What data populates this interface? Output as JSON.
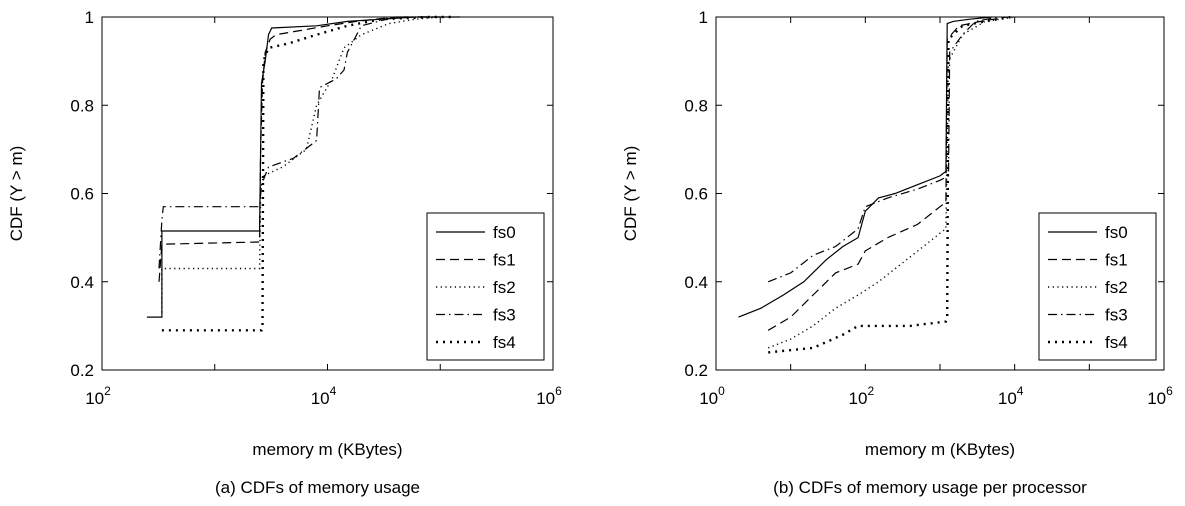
{
  "chart_data": [
    {
      "type": "line",
      "caption": "(a) CDFs of memory usage",
      "xlabel": "memory m (KBytes)",
      "ylabel": "CDF (Y > m)",
      "xscale": "log",
      "xlim": [
        100,
        1000000
      ],
      "ylim": [
        0.2,
        1.0
      ],
      "xticks": [
        {
          "base": "10",
          "exp": "2",
          "value": 100
        },
        {
          "base": "10",
          "exp": "4",
          "value": 10000
        },
        {
          "base": "10",
          "exp": "6",
          "value": 1000000
        }
      ],
      "yticks": [
        {
          "label": "0.2",
          "value": 0.2
        },
        {
          "label": "0.4",
          "value": 0.4
        },
        {
          "label": "0.6",
          "value": 0.6
        },
        {
          "label": "0.8",
          "value": 0.8
        },
        {
          "label": "1",
          "value": 1.0
        }
      ],
      "grid": false,
      "legend_position": "lower-right",
      "series": [
        {
          "name": "fs0",
          "dash": "solid",
          "points": [
            [
              250,
              0.32
            ],
            [
              340,
              0.32
            ],
            [
              340,
              0.515
            ],
            [
              2500,
              0.515
            ],
            [
              2500,
              0.52
            ],
            [
              2600,
              0.85
            ],
            [
              2800,
              0.9
            ],
            [
              3000,
              0.96
            ],
            [
              3200,
              0.975
            ],
            [
              8000,
              0.98
            ],
            [
              15000,
              0.99
            ],
            [
              30000,
              0.995
            ],
            [
              60000,
              1.0
            ],
            [
              150000,
              1.0
            ]
          ]
        },
        {
          "name": "fs1",
          "dash": "dashed",
          "points": [
            [
              320,
              0.4
            ],
            [
              340,
              0.485
            ],
            [
              2500,
              0.49
            ],
            [
              2550,
              0.7
            ],
            [
              2650,
              0.85
            ],
            [
              2800,
              0.92
            ],
            [
              3100,
              0.95
            ],
            [
              3500,
              0.96
            ],
            [
              10000,
              0.98
            ],
            [
              18000,
              0.99
            ],
            [
              40000,
              1.0
            ],
            [
              100000,
              1.0
            ]
          ]
        },
        {
          "name": "fs2",
          "dash": "dotted",
          "points": [
            [
              340,
              0.33
            ],
            [
              340,
              0.43
            ],
            [
              2500,
              0.43
            ],
            [
              2550,
              0.6
            ],
            [
              2700,
              0.64
            ],
            [
              4000,
              0.66
            ],
            [
              6500,
              0.7
            ],
            [
              8000,
              0.8
            ],
            [
              11000,
              0.86
            ],
            [
              14000,
              0.93
            ],
            [
              20000,
              0.96
            ],
            [
              35000,
              0.985
            ],
            [
              60000,
              0.995
            ],
            [
              100000,
              1.0
            ]
          ]
        },
        {
          "name": "fs3",
          "dash": "dashdot",
          "points": [
            [
              320,
              0.43
            ],
            [
              340,
              0.54
            ],
            [
              350,
              0.57
            ],
            [
              2500,
              0.57
            ],
            [
              2600,
              0.62
            ],
            [
              3000,
              0.66
            ],
            [
              5000,
              0.68
            ],
            [
              8000,
              0.72
            ],
            [
              8500,
              0.84
            ],
            [
              12000,
              0.86
            ],
            [
              14000,
              0.88
            ],
            [
              15000,
              0.92
            ],
            [
              20000,
              0.98
            ],
            [
              40000,
              1.0
            ],
            [
              80000,
              1.0
            ]
          ]
        },
        {
          "name": "fs4",
          "dash": "bigdots",
          "points": [
            [
              340,
              0.29
            ],
            [
              2600,
              0.29
            ],
            [
              2650,
              0.3
            ],
            [
              2700,
              0.9
            ],
            [
              3000,
              0.93
            ],
            [
              4500,
              0.94
            ],
            [
              8000,
              0.96
            ],
            [
              15000,
              0.98
            ],
            [
              30000,
              0.995
            ],
            [
              80000,
              1.0
            ],
            [
              130000,
              1.0
            ]
          ]
        }
      ]
    },
    {
      "type": "line",
      "caption": "(b) CDFs of memory usage per processor",
      "xlabel": "memory m (KBytes)",
      "ylabel": "CDF (Y > m)",
      "xscale": "log",
      "xlim": [
        1,
        1000000
      ],
      "ylim": [
        0.2,
        1.0
      ],
      "xticks": [
        {
          "base": "10",
          "exp": "0",
          "value": 1
        },
        {
          "base": "10",
          "exp": "2",
          "value": 100
        },
        {
          "base": "10",
          "exp": "4",
          "value": 10000
        },
        {
          "base": "10",
          "exp": "6",
          "value": 1000000
        }
      ],
      "yticks": [
        {
          "label": "0.2",
          "value": 0.2
        },
        {
          "label": "0.4",
          "value": 0.4
        },
        {
          "label": "0.6",
          "value": 0.6
        },
        {
          "label": "0.8",
          "value": 0.8
        },
        {
          "label": "1",
          "value": 1.0
        }
      ],
      "grid": false,
      "legend_position": "lower-right",
      "series": [
        {
          "name": "fs0",
          "dash": "solid",
          "points": [
            [
              2,
              0.32
            ],
            [
              4,
              0.34
            ],
            [
              8,
              0.37
            ],
            [
              15,
              0.4
            ],
            [
              30,
              0.45
            ],
            [
              50,
              0.48
            ],
            [
              80,
              0.5
            ],
            [
              100,
              0.56
            ],
            [
              150,
              0.59
            ],
            [
              250,
              0.6
            ],
            [
              500,
              0.62
            ],
            [
              1000,
              0.64
            ],
            [
              1200,
              0.65
            ],
            [
              1250,
              0.985
            ],
            [
              1500,
              0.99
            ],
            [
              2500,
              0.995
            ],
            [
              5000,
              1.0
            ]
          ]
        },
        {
          "name": "fs1",
          "dash": "dashed",
          "points": [
            [
              5,
              0.29
            ],
            [
              10,
              0.32
            ],
            [
              20,
              0.37
            ],
            [
              40,
              0.42
            ],
            [
              80,
              0.44
            ],
            [
              100,
              0.47
            ],
            [
              200,
              0.5
            ],
            [
              500,
              0.53
            ],
            [
              1000,
              0.57
            ],
            [
              1200,
              0.58
            ],
            [
              1250,
              0.95
            ],
            [
              1800,
              0.98
            ],
            [
              3500,
              0.99
            ],
            [
              8000,
              1.0
            ]
          ]
        },
        {
          "name": "fs2",
          "dash": "dotted",
          "points": [
            [
              5,
              0.25
            ],
            [
              10,
              0.27
            ],
            [
              20,
              0.3
            ],
            [
              40,
              0.34
            ],
            [
              80,
              0.37
            ],
            [
              150,
              0.4
            ],
            [
              300,
              0.44
            ],
            [
              600,
              0.48
            ],
            [
              1000,
              0.51
            ],
            [
              1200,
              0.52
            ],
            [
              1300,
              0.9
            ],
            [
              2000,
              0.96
            ],
            [
              4000,
              0.99
            ],
            [
              10000,
              1.0
            ]
          ]
        },
        {
          "name": "fs3",
          "dash": "dashdot",
          "points": [
            [
              5,
              0.4
            ],
            [
              10,
              0.42
            ],
            [
              20,
              0.46
            ],
            [
              40,
              0.48
            ],
            [
              80,
              0.52
            ],
            [
              100,
              0.57
            ],
            [
              200,
              0.59
            ],
            [
              500,
              0.61
            ],
            [
              1000,
              0.63
            ],
            [
              1300,
              0.64
            ],
            [
              1350,
              0.92
            ],
            [
              2000,
              0.96
            ],
            [
              3000,
              0.99
            ],
            [
              6000,
              1.0
            ]
          ]
        },
        {
          "name": "fs4",
          "dash": "bigdots",
          "points": [
            [
              5,
              0.24
            ],
            [
              20,
              0.25
            ],
            [
              50,
              0.28
            ],
            [
              80,
              0.3
            ],
            [
              400,
              0.3
            ],
            [
              1200,
              0.31
            ],
            [
              1250,
              0.32
            ],
            [
              1300,
              0.95
            ],
            [
              2000,
              0.98
            ],
            [
              4000,
              0.99
            ],
            [
              9000,
              1.0
            ]
          ]
        }
      ]
    }
  ]
}
